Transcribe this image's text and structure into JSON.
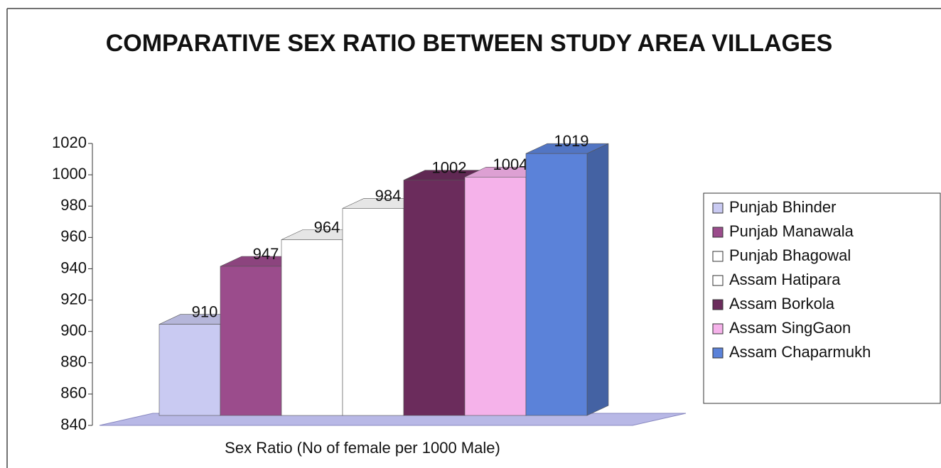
{
  "chart_data": {
    "type": "bar3d",
    "title": "COMPARATIVE SEX RATIO BETWEEN STUDY AREA VILLAGES",
    "categories": [
      "Sex Ratio (No of female per 1000 Male)"
    ],
    "series": [
      {
        "name": "Punjab Bhinder",
        "color": "#c9caf2",
        "values": [
          910
        ]
      },
      {
        "name": "Punjab Manawala",
        "color": "#9b4c8c",
        "values": [
          947
        ]
      },
      {
        "name": "Punjab Bhagowal",
        "color": "#ffffff",
        "values": [
          964
        ]
      },
      {
        "name": "Assam Hatipara",
        "color": "#ffffff",
        "values": [
          984
        ]
      },
      {
        "name": "Assam Borkola",
        "color": "#6b2c5c",
        "values": [
          1002
        ]
      },
      {
        "name": "Assam SingGaon",
        "color": "#f5b2ea",
        "values": [
          1004
        ]
      },
      {
        "name": "Assam Chaparmukh",
        "color": "#5b82d9",
        "values": [
          1019
        ]
      }
    ],
    "ylim": [
      840,
      1020
    ],
    "yticks": [
      840,
      860,
      880,
      900,
      920,
      940,
      960,
      980,
      1000,
      1020
    ],
    "legend": "right"
  }
}
